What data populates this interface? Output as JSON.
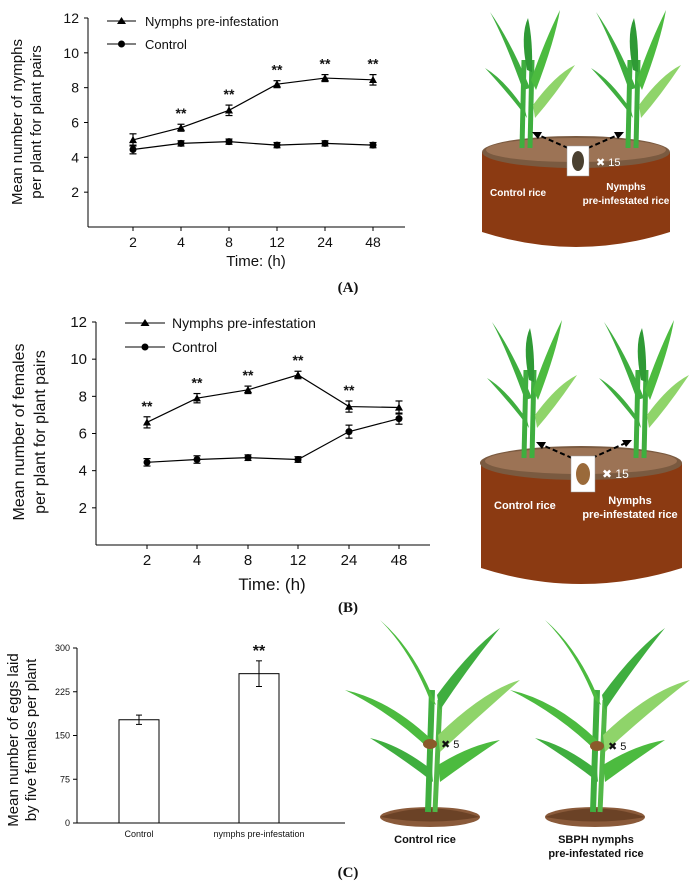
{
  "panels": {
    "a_label": "(A)",
    "b_label": "(B)",
    "c_label": "(C)"
  },
  "illustrations": {
    "a_control": "Control rice",
    "a_treated_1": "Nymphs",
    "a_treated_2": "pre-infestated rice",
    "a_count": "✖ 15",
    "b_control": "Control rice",
    "b_treated_1": "Nymphs",
    "b_treated_2": "pre-infestated rice",
    "b_count": "✖ 15",
    "c_control": "Control rice",
    "c_treated_1": "SBPH nymphs",
    "c_treated_2": "pre-infestated rice",
    "c_count_left": "✖ 5",
    "c_count_right": "✖ 5"
  },
  "colors": {
    "soil": "#8b3a12",
    "soil_top": "#7a5a40",
    "leaf": "#3fae3f",
    "leaf_light": "#8fd46a"
  },
  "chart_data": [
    {
      "type": "line",
      "id": "A",
      "title": "",
      "xlabel": "Time: (h)",
      "ylabel_line1": "Mean number of nymphs",
      "ylabel_line2": "per plant for plant pairs",
      "categories": [
        "2",
        "4",
        "8",
        "12",
        "24",
        "48"
      ],
      "ylim": [
        0,
        12
      ],
      "yticks": [
        "2",
        "4",
        "6",
        "8",
        "10",
        "12"
      ],
      "series": [
        {
          "name": "Nymphs pre-infestation",
          "marker": "triangle",
          "values": [
            5.0,
            5.7,
            6.7,
            8.2,
            8.55,
            8.45
          ],
          "errors": [
            0.35,
            0.2,
            0.3,
            0.2,
            0.2,
            0.3
          ]
        },
        {
          "name": "Control",
          "marker": "circle",
          "values": [
            4.45,
            4.8,
            4.9,
            4.7,
            4.8,
            4.7
          ],
          "errors": [
            0.25,
            0.15,
            0.15,
            0.15,
            0.15,
            0.15
          ]
        }
      ],
      "significance": [
        "",
        "**",
        "**",
        "**",
        "**",
        "**"
      ]
    },
    {
      "type": "line",
      "id": "B",
      "title": "",
      "xlabel": "Time: (h)",
      "ylabel_line1": "Mean number of females",
      "ylabel_line2": "per plant for plant pairs",
      "categories": [
        "2",
        "4",
        "8",
        "12",
        "24",
        "48"
      ],
      "ylim": [
        0,
        12
      ],
      "yticks": [
        "2",
        "4",
        "6",
        "8",
        "10",
        "12"
      ],
      "series": [
        {
          "name": "Nymphs pre-infestation",
          "marker": "triangle",
          "values": [
            6.6,
            7.9,
            8.35,
            9.15,
            7.45,
            7.4
          ],
          "errors": [
            0.3,
            0.25,
            0.2,
            0.2,
            0.3,
            0.35
          ]
        },
        {
          "name": "Control",
          "marker": "circle",
          "values": [
            4.45,
            4.6,
            4.7,
            4.6,
            6.1,
            6.8
          ],
          "errors": [
            0.2,
            0.2,
            0.15,
            0.15,
            0.35,
            0.3
          ]
        }
      ],
      "significance": [
        "**",
        "**",
        "**",
        "**",
        "**",
        ""
      ]
    },
    {
      "type": "bar",
      "id": "C",
      "title": "",
      "xlabel": "",
      "ylabel_line1": "Mean number of eggs laid",
      "ylabel_line2": "by five females per plant",
      "categories": [
        "Control",
        "nymphs pre-infestation"
      ],
      "values": [
        177,
        256
      ],
      "errors": [
        8,
        22
      ],
      "ylim": [
        0,
        300
      ],
      "yticks": [
        "0",
        "75",
        "150",
        "225",
        "300"
      ],
      "significance": [
        "",
        "**"
      ]
    }
  ]
}
